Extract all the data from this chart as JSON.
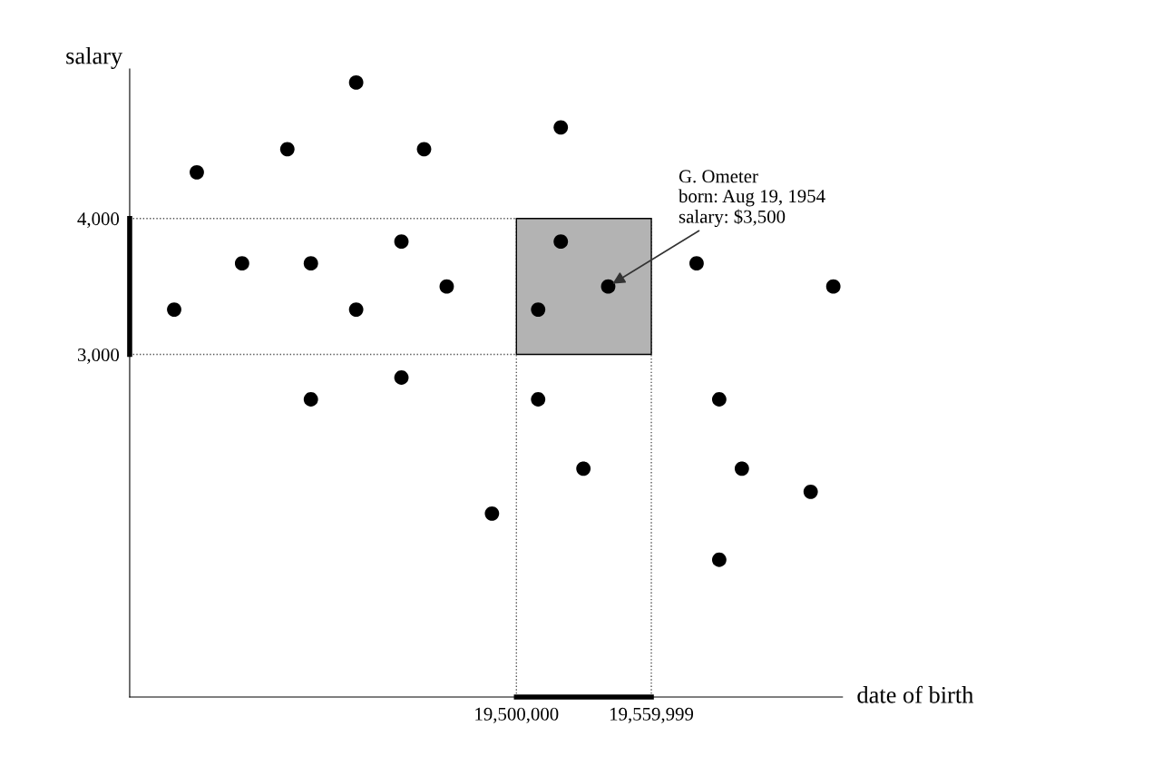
{
  "chart_data": {
    "type": "scatter",
    "xlabel": "date of birth",
    "ylabel": "salary",
    "x": [
      19428725,
      19357854,
      19398122,
      19458927,
      19519731,
      19347787,
      19377989,
      19408590,
      19428725,
      19448860,
      19468994,
      19509664,
      19519731,
      19540819,
      19580133,
      19640938,
      19408590,
      19448860,
      19509664,
      19529798,
      19489128,
      19590200,
      19600267,
      19630871,
      19590200
    ],
    "series": [
      {
        "color": "#000000",
        "values": [
          5000,
          4340,
          4510,
          4510,
          4670,
          3330,
          3670,
          3670,
          3330,
          3830,
          3500,
          3330,
          3830,
          3500,
          3670,
          3500,
          2670,
          2830,
          2670,
          2160,
          1830,
          2670,
          2160,
          1990,
          1490
        ]
      }
    ],
    "marker": "circle",
    "xlim": [
      19328000,
      19645000
    ],
    "ylim": [
      480,
      5100
    ],
    "xticks": [
      {
        "value": 19500000,
        "label": "19,500,000"
      },
      {
        "value": 19559999,
        "label": "19,559,999"
      }
    ],
    "yticks": [
      {
        "value": 3000,
        "label": "3,000"
      },
      {
        "value": 4000,
        "label": "4,000"
      }
    ],
    "ref_lines": [
      {
        "axis": "x",
        "value": 19500000,
        "color": "#555555",
        "line_style": "dotted"
      },
      {
        "axis": "x",
        "value": 19559999,
        "color": "#555555",
        "line_style": "dotted"
      },
      {
        "axis": "y",
        "value": 3000,
        "color": "#555555",
        "line_style": "dotted"
      },
      {
        "axis": "y",
        "value": 4000,
        "color": "#555555",
        "line_style": "dotted"
      }
    ],
    "annotations": [
      {
        "text": "G. Ometer\nborn: Aug 19, 1954\nsalary: $3,500",
        "x": 19540819,
        "y": 3500
      }
    ],
    "grid": false,
    "legend": false
  }
}
